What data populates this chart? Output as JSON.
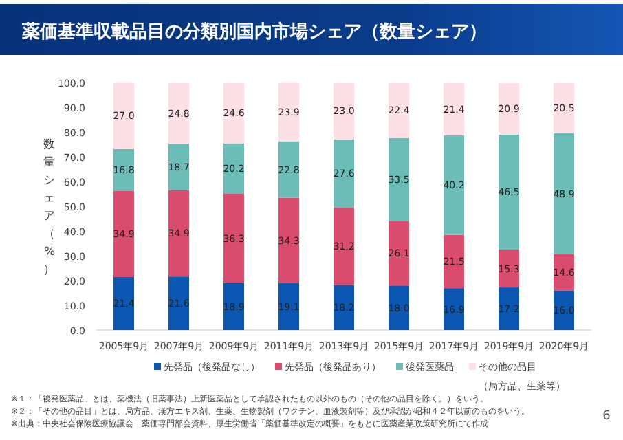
{
  "chart_data": {
    "type": "bar",
    "stacked": true,
    "title": "薬価基準収載品目の分類別国内市場シェア（数量シェア）",
    "ylabel": "数量シェア（%）",
    "categories": [
      "2005年9月",
      "2007年9月",
      "2009年9月",
      "2011年9月",
      "2013年9月",
      "2015年9月",
      "2017年9月",
      "2019年9月",
      "2020年9月"
    ],
    "series": [
      {
        "name": "先発品（後発品なし）",
        "color": "#0b57b1",
        "values": [
          21.4,
          21.6,
          18.9,
          19.1,
          18.2,
          18.0,
          16.9,
          17.2,
          16.0
        ],
        "value_labels": [
          "21.4",
          "21.6",
          "18.9",
          "19.1",
          "18.2",
          "18.0",
          "16.9",
          "17.2",
          "16.0"
        ]
      },
      {
        "name": "先発品（後発品あり）",
        "color": "#d94c6e",
        "values": [
          34.9,
          34.9,
          36.3,
          34.3,
          31.2,
          26.1,
          21.5,
          15.3,
          14.6
        ],
        "value_labels": [
          "34.9",
          "34.9",
          "36.3",
          "34.3",
          "31.2",
          "26.1",
          "21.5",
          "15.3",
          "14.6"
        ]
      },
      {
        "name": "後発医薬品",
        "color": "#6cbdb7",
        "values": [
          16.8,
          18.7,
          20.2,
          22.8,
          27.6,
          33.5,
          40.2,
          46.5,
          48.9
        ],
        "value_labels": [
          "16.8",
          "18.7",
          "20.2",
          "22.8",
          "27.6",
          "33.5",
          "40.2",
          "46.5",
          "48.9"
        ]
      },
      {
        "name": "その他の品目（局方品、生薬等）",
        "color": "#fde0e5",
        "values": [
          27.0,
          24.8,
          24.6,
          23.9,
          23.0,
          22.4,
          21.4,
          20.9,
          20.5
        ],
        "value_labels": [
          "27.0",
          "24.8",
          "24.6",
          "23.9",
          "23.0",
          "22.4",
          "21.4",
          "20.9",
          "20.5"
        ]
      }
    ],
    "ylim": [
      0,
      100
    ],
    "yticks": [
      {
        "value": 0,
        "label": "0.0"
      },
      {
        "value": 10,
        "label": "10.0"
      },
      {
        "value": 20,
        "label": "20.0"
      },
      {
        "value": 30,
        "label": "30.0"
      },
      {
        "value": 40,
        "label": "40.0"
      },
      {
        "value": 50,
        "label": "50.0"
      },
      {
        "value": 60,
        "label": "60.0"
      },
      {
        "value": 70,
        "label": "70.0"
      },
      {
        "value": 80,
        "label": "80.0"
      },
      {
        "value": 90,
        "label": "90.0"
      },
      {
        "value": 100,
        "label": "100.0"
      }
    ],
    "grid": false,
    "legend": "bottom",
    "annotations": [
      "※１：「後発医薬品」とは、薬機法（旧薬事法）上新医薬品として承認されたもの以外のもの（その他の品目を除く。）をいう。",
      "※２：「その他の品目」とは、局方品、漢方エキス剤、生薬、生物製剤（ワクチン、血液製剤等）及び承認が昭和４２年以前のものをいう。",
      "※出典：中央社会保険医療協議会　薬価専門部会資料、厚生労働省「薬価基準改定の概要」をもとに医薬産業政策研究所にて作成",
      "6"
    ]
  }
}
